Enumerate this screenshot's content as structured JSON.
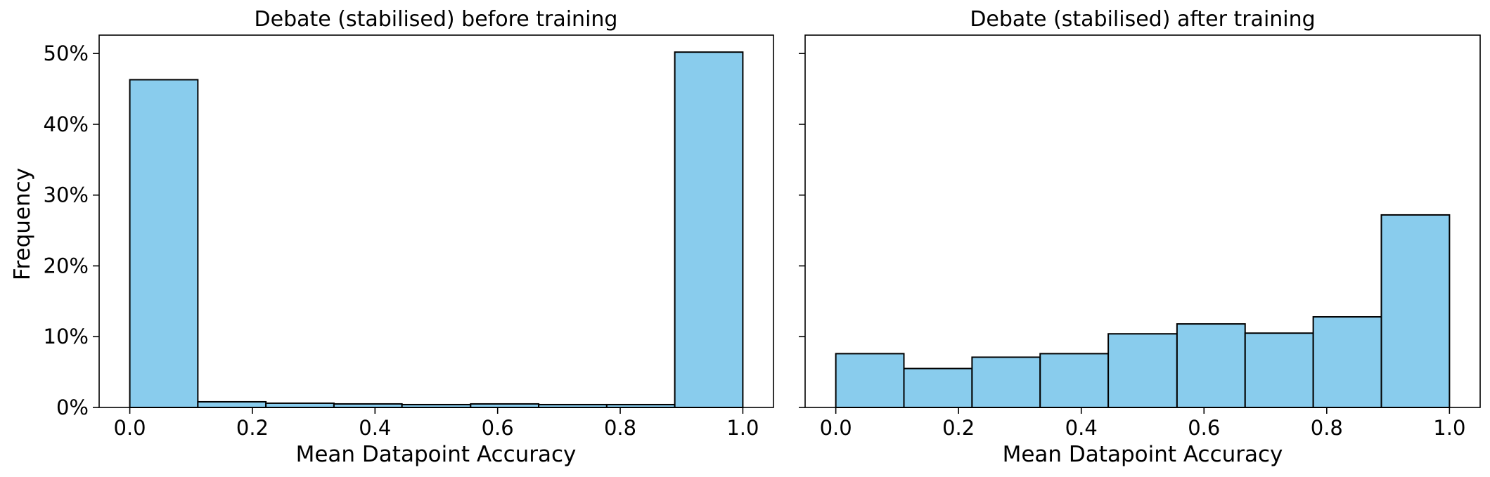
{
  "chart_data": [
    {
      "type": "bar",
      "title": "Debate (stabilised) before training",
      "xlabel": "Mean Datapoint Accuracy",
      "ylabel": "Frequency",
      "bin_edges": [
        0.0,
        0.111,
        0.222,
        0.333,
        0.444,
        0.556,
        0.667,
        0.778,
        0.889,
        1.0
      ],
      "values": [
        46.3,
        0.8,
        0.6,
        0.5,
        0.4,
        0.5,
        0.4,
        0.4,
        50.2
      ],
      "xlim": [
        -0.05,
        1.05
      ],
      "ylim": [
        0,
        52.6
      ],
      "xticks": [
        0.0,
        0.2,
        0.4,
        0.6,
        0.8,
        1.0
      ],
      "xtick_labels": [
        "0.0",
        "0.2",
        "0.4",
        "0.6",
        "0.8",
        "1.0"
      ],
      "yticks": [
        0,
        10,
        20,
        30,
        40,
        50
      ],
      "ytick_labels": [
        "0%",
        "10%",
        "20%",
        "30%",
        "40%",
        "50%"
      ],
      "show_ytick_labels": true,
      "grid": false,
      "bar_color": "#89CCED",
      "edge_color": "#000000"
    },
    {
      "type": "bar",
      "title": "Debate (stabilised) after training",
      "xlabel": "Mean Datapoint Accuracy",
      "ylabel": "",
      "bin_edges": [
        0.0,
        0.111,
        0.222,
        0.333,
        0.444,
        0.556,
        0.667,
        0.778,
        0.889,
        1.0
      ],
      "values": [
        7.6,
        5.5,
        7.1,
        7.6,
        10.4,
        11.8,
        10.5,
        12.8,
        27.2
      ],
      "xlim": [
        -0.05,
        1.05
      ],
      "ylim": [
        0,
        52.6
      ],
      "xticks": [
        0.0,
        0.2,
        0.4,
        0.6,
        0.8,
        1.0
      ],
      "xtick_labels": [
        "0.0",
        "0.2",
        "0.4",
        "0.6",
        "0.8",
        "1.0"
      ],
      "yticks": [
        0,
        10,
        20,
        30,
        40,
        50
      ],
      "ytick_labels": [],
      "show_ytick_labels": false,
      "grid": false,
      "bar_color": "#89CCED",
      "edge_color": "#000000"
    }
  ]
}
